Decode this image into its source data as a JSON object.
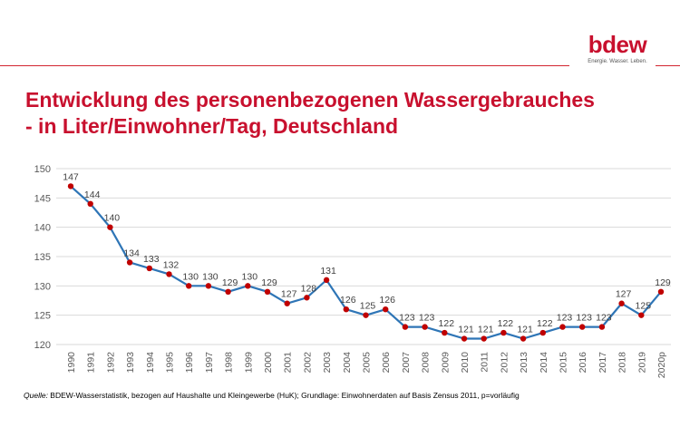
{
  "header": {
    "logo_text": "bdew",
    "logo_tagline": "Energie. Wasser. Leben."
  },
  "title_line1": "Entwicklung des personenbezogenen Wassergebrauches",
  "title_line2": "- in Liter/Einwohner/Tag, Deutschland",
  "source": {
    "label": "Quelle:",
    "text": " BDEW-Wasserstatistik, bezogen auf Haushalte und Kleingewerbe (HuK); Grundlage: Einwohnerdaten auf Basis Zensus 2011, p=vorläufig"
  },
  "colors": {
    "line": "#2e75b6",
    "marker": "#c00000",
    "accent": "#c8102e"
  },
  "chart_data": {
    "type": "line",
    "title": "Entwicklung des personenbezogenen Wassergebrauches - in Liter/Einwohner/Tag, Deutschland",
    "xlabel": "",
    "ylabel": "",
    "ylim": [
      120,
      150
    ],
    "yticks": [
      120,
      125,
      130,
      135,
      140,
      145,
      150
    ],
    "grid": true,
    "categories": [
      "1990",
      "1991",
      "1992",
      "1993",
      "1994",
      "1995",
      "1996",
      "1997",
      "1998",
      "1999",
      "2000",
      "2001",
      "2002",
      "2003",
      "2004",
      "2005",
      "2006",
      "2007",
      "2008",
      "2009",
      "2010",
      "2011",
      "2012",
      "2013",
      "2014",
      "2015",
      "2016",
      "2017",
      "2018",
      "2019",
      "2020p"
    ],
    "values": [
      147,
      144,
      140,
      134,
      133,
      132,
      130,
      130,
      129,
      130,
      129,
      127,
      128,
      131,
      126,
      125,
      126,
      123,
      123,
      122,
      121,
      121,
      122,
      121,
      122,
      123,
      123,
      123,
      127,
      125,
      129
    ]
  }
}
